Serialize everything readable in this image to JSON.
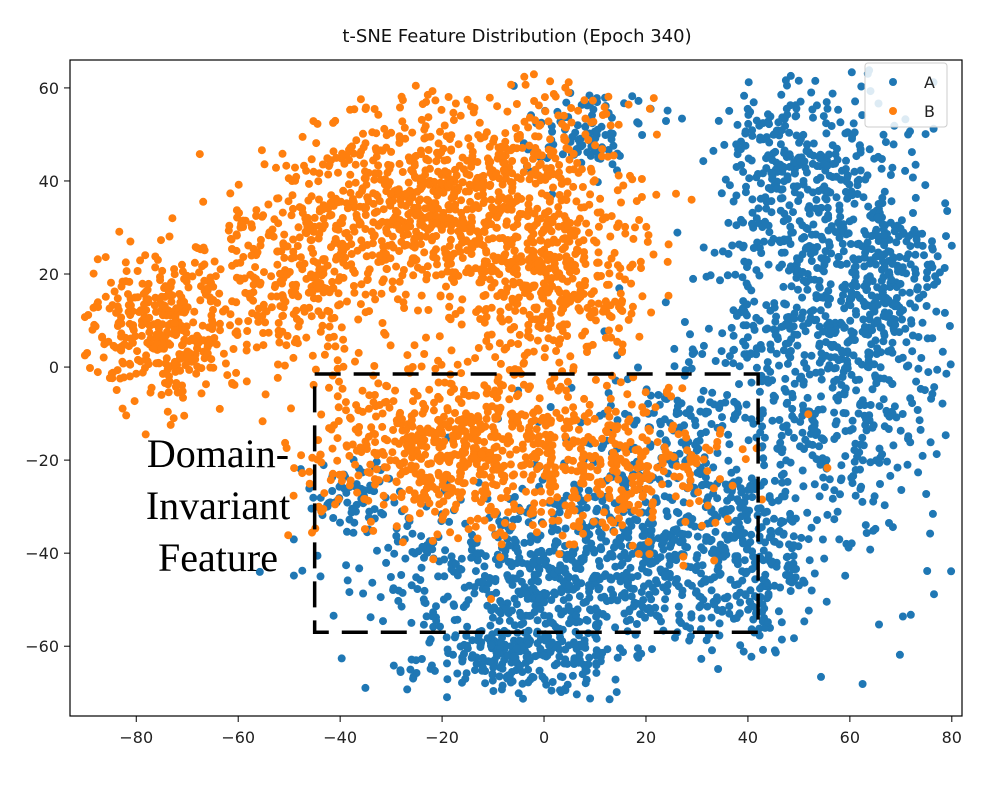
{
  "chart_data": {
    "type": "scatter",
    "title": "t-SNE Feature Distribution (Epoch 340)",
    "xlabel": "",
    "ylabel": "",
    "xlim": [
      -93,
      82
    ],
    "ylim": [
      -75,
      66
    ],
    "xticks": [
      -80,
      -60,
      -40,
      -20,
      0,
      20,
      40,
      60,
      80
    ],
    "yticks": [
      60,
      40,
      20,
      0,
      -20,
      -40,
      -60
    ],
    "xtick_labels": [
      "−80",
      "−60",
      "−40",
      "−20",
      "0",
      "20",
      "40",
      "60",
      "80"
    ],
    "ytick_labels": [
      "60",
      "40",
      "20",
      "0",
      "−20",
      "−40",
      "−60"
    ],
    "grid": false,
    "legend": {
      "placement": "top-right"
    },
    "series": [
      {
        "name": "A",
        "color": "#1f77b4",
        "clusters": [
          {
            "cx": 56,
            "cy": 10,
            "sx": 12,
            "sy": 25,
            "n": 900,
            "seed": 11
          },
          {
            "cx": 48,
            "cy": 45,
            "sx": 6,
            "sy": 7,
            "n": 180,
            "seed": 12
          },
          {
            "cx": 65,
            "cy": 20,
            "sx": 6,
            "sy": 10,
            "n": 150,
            "seed": 13
          },
          {
            "cx": 5,
            "cy": -45,
            "sx": 20,
            "sy": 9,
            "n": 700,
            "seed": 14
          },
          {
            "cx": -5,
            "cy": -62,
            "sx": 10,
            "sy": 4,
            "n": 220,
            "seed": 15
          },
          {
            "cx": 25,
            "cy": -25,
            "sx": 12,
            "sy": 15,
            "n": 350,
            "seed": 16
          },
          {
            "cx": -38,
            "cy": -28,
            "sx": 4,
            "sy": 5,
            "n": 70,
            "seed": 17
          },
          {
            "cx": 8,
            "cy": 50,
            "sx": 6,
            "sy": 5,
            "n": 90,
            "seed": 18
          },
          {
            "cx": 40,
            "cy": -40,
            "sx": 6,
            "sy": 10,
            "n": 150,
            "seed": 19
          }
        ]
      },
      {
        "name": "B",
        "color": "#ff7f0e",
        "clusters": [
          {
            "cx": -75,
            "cy": 8,
            "sx": 8,
            "sy": 8,
            "n": 350,
            "seed": 21
          },
          {
            "cx": -50,
            "cy": 20,
            "sx": 10,
            "sy": 10,
            "n": 320,
            "seed": 22
          },
          {
            "cx": -25,
            "cy": 35,
            "sx": 12,
            "sy": 10,
            "n": 650,
            "seed": 23
          },
          {
            "cx": 0,
            "cy": 22,
            "sx": 10,
            "sy": 12,
            "n": 520,
            "seed": 24
          },
          {
            "cx": -18,
            "cy": -18,
            "sx": 14,
            "sy": 9,
            "n": 620,
            "seed": 25
          },
          {
            "cx": 15,
            "cy": -22,
            "sx": 12,
            "sy": 8,
            "n": 280,
            "seed": 26
          },
          {
            "cx": 2,
            "cy": 50,
            "sx": 8,
            "sy": 6,
            "n": 90,
            "seed": 27
          }
        ]
      }
    ],
    "annotations": [
      {
        "type": "dashed-rectangle",
        "x": [
          -45,
          42
        ],
        "y": [
          -57,
          -1.5
        ]
      },
      {
        "type": "text",
        "lines": [
          "Domain-",
          "Invariant",
          "Feature"
        ]
      }
    ]
  }
}
